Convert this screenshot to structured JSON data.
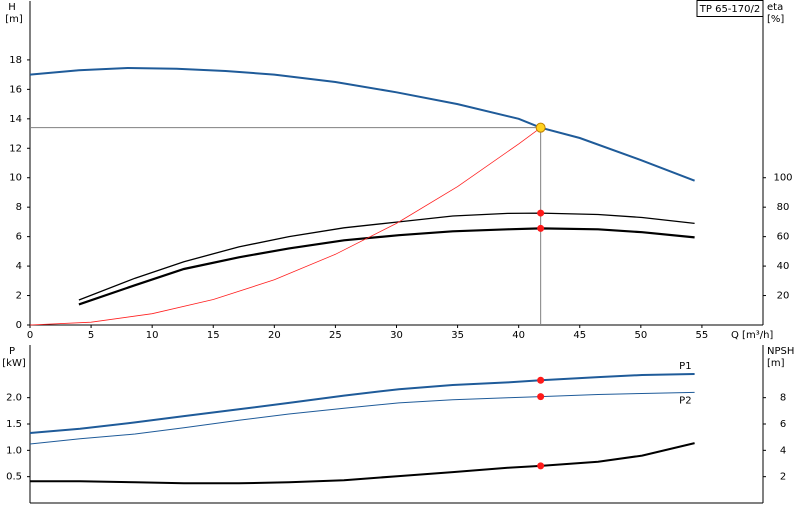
{
  "chart_data": [
    {
      "type": "line",
      "legend_title": "TP 65-170/2",
      "xlabel": "Q [m³/h]",
      "ylabel": "H",
      "yunit": "[m]",
      "y2label": "eta",
      "y2unit": "[%]",
      "xlim": [
        0,
        60
      ],
      "ylim": [
        0,
        22
      ],
      "y2lim": [
        0,
        220
      ],
      "xticks": [
        0,
        5,
        10,
        15,
        20,
        25,
        30,
        35,
        40,
        45,
        50,
        55
      ],
      "yticks": [
        0,
        2,
        4,
        6,
        8,
        10,
        12,
        14,
        16,
        18
      ],
      "y2ticks": [
        20,
        40,
        60,
        80,
        100
      ],
      "series": [
        {
          "color": "#1f5b99",
          "width": 2,
          "x": [
            0,
            4,
            8,
            12,
            16,
            20,
            25,
            30,
            35,
            40,
            41.8,
            45,
            50,
            54.4
          ],
          "values": [
            17.0,
            17.3,
            17.45,
            17.4,
            17.25,
            17.0,
            16.5,
            15.8,
            15.0,
            14.0,
            13.4,
            12.7,
            11.2,
            9.8
          ]
        },
        {
          "color": "#000000",
          "width": 1.3,
          "axis": "y2",
          "x": [
            4,
            8.6,
            12.6,
            17.1,
            21.2,
            25.7,
            30.2,
            34.6,
            39.1,
            41.8,
            46.5,
            50.1,
            54.4
          ],
          "values": [
            17,
            31.8,
            43,
            53,
            60,
            66,
            70,
            74,
            75.8,
            76,
            75,
            73,
            69
          ]
        },
        {
          "color": "#000000",
          "width": 2.2,
          "axis": "y2",
          "x": [
            4,
            8.6,
            12.6,
            17.1,
            21.2,
            25.7,
            30.2,
            34.6,
            39.1,
            41.8,
            46.5,
            50.1,
            54.4
          ],
          "values": [
            14,
            27,
            38,
            46,
            52,
            57.5,
            61,
            63.6,
            65,
            65.6,
            65,
            63,
            59.5
          ]
        },
        {
          "color": "#ff2020",
          "width": 0.8,
          "x": [
            0,
            5,
            10,
            15,
            20,
            25,
            30,
            35,
            40,
            41.8
          ],
          "values": [
            0,
            0.19,
            0.77,
            1.73,
            3.07,
            4.8,
            6.9,
            9.4,
            12.3,
            13.4
          ]
        }
      ],
      "points": [
        {
          "x": 41.8,
          "y": 13.4,
          "color": "#ffd21f",
          "crosshair": true
        },
        {
          "x": 41.8,
          "y": 76,
          "axis": "y2",
          "color": "#ff1a1a"
        },
        {
          "x": 41.8,
          "y": 65.6,
          "axis": "y2",
          "color": "#ff1a1a"
        }
      ]
    },
    {
      "type": "line",
      "ylabel": "P",
      "yunit": "[kW]",
      "y2label": "NPSH",
      "y2unit": "[m]",
      "xlim": [
        0,
        60
      ],
      "ylim": [
        0,
        3
      ],
      "y2lim": [
        0,
        12
      ],
      "yticks": [
        0.5,
        {
          "value": 1,
          "label": "1.0"
        },
        1.5,
        {
          "value": 2,
          "label": "2.0"
        }
      ],
      "y2ticks": [
        2,
        4,
        6,
        8
      ],
      "series": [
        {
          "name": "P1",
          "color": "#1f5b99",
          "width": 2,
          "x": [
            0,
            4.1,
            8.6,
            12.6,
            17.1,
            21.2,
            25.7,
            30.2,
            34.6,
            39.1,
            41.8,
            46.5,
            50.1,
            54.4
          ],
          "values": [
            1.33,
            1.41,
            1.53,
            1.65,
            1.78,
            1.9,
            2.04,
            2.16,
            2.24,
            2.29,
            2.33,
            2.39,
            2.43,
            2.45
          ]
        },
        {
          "name": "P2",
          "color": "#1f5b99",
          "width": 1,
          "x": [
            0,
            4.1,
            8.6,
            12.6,
            17.1,
            21.2,
            25.7,
            30.2,
            34.6,
            39.1,
            41.8,
            46.5,
            50.1,
            54.4
          ],
          "values": [
            1.12,
            1.22,
            1.31,
            1.43,
            1.57,
            1.69,
            1.8,
            1.9,
            1.96,
            2.0,
            2.02,
            2.06,
            2.08,
            2.1
          ]
        },
        {
          "color": "#000000",
          "width": 2,
          "axis": "y2",
          "x": [
            0,
            4.1,
            8.6,
            12.6,
            17.1,
            21.2,
            25.7,
            30.2,
            34.6,
            39.1,
            41.8,
            46.5,
            50.1,
            54.4
          ],
          "values": [
            1.65,
            1.65,
            1.57,
            1.5,
            1.5,
            1.57,
            1.73,
            2.04,
            2.35,
            2.67,
            2.82,
            3.14,
            3.6,
            4.55
          ]
        }
      ],
      "points": [
        {
          "x": 41.8,
          "y": 2.33,
          "color": "#ff1a1a"
        },
        {
          "x": 41.8,
          "y": 2.02,
          "color": "#ff1a1a"
        },
        {
          "x": 41.8,
          "y": 2.82,
          "axis": "y2",
          "color": "#ff1a1a"
        }
      ]
    }
  ]
}
